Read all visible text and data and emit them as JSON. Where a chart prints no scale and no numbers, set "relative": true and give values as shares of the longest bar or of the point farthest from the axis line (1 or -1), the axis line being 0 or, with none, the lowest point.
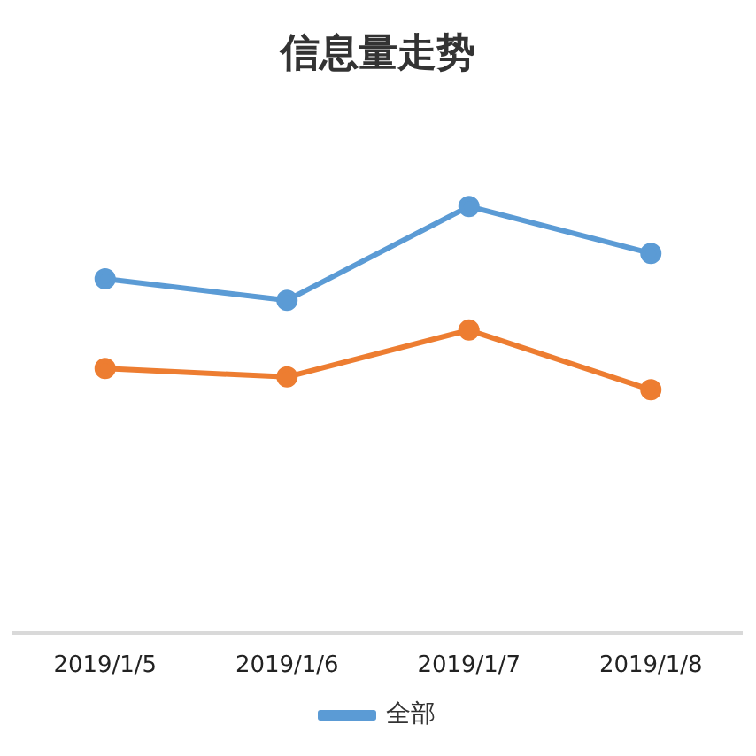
{
  "chart_data": {
    "type": "line",
    "title": "信息量走势",
    "relative": true,
    "categories": [
      "2019/1/5",
      "2019/1/6",
      "2019/1/7",
      "2019/1/8"
    ],
    "series": [
      {
        "name": "全部",
        "color": "#5b9bd5",
        "values": [
          0.83,
          0.78,
          1,
          0.89
        ]
      },
      {
        "color": "#ed7d31",
        "values": [
          0.62,
          0.6,
          0.71,
          0.57
        ]
      }
    ],
    "marker": "circle",
    "legend": "bottom",
    "grid": false
  }
}
